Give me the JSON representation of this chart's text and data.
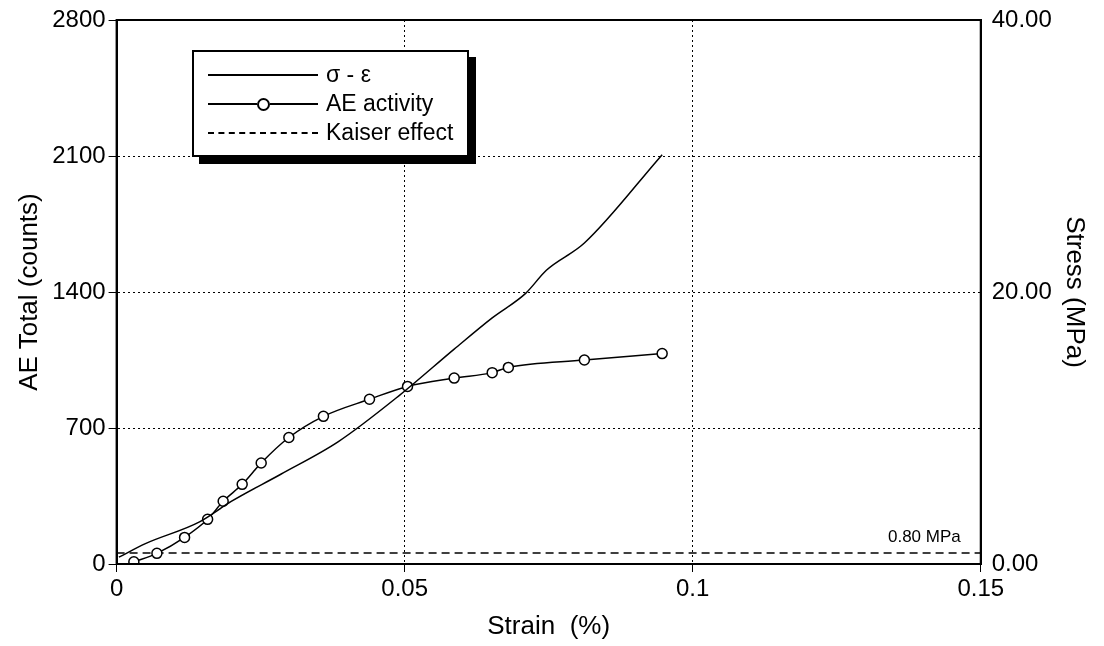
{
  "chart_data": {
    "type": "line",
    "xlabel": "Strain  (%)",
    "ylabel": "AE Total (counts)",
    "y2label": "Stress (MPa)",
    "xlim": [
      0,
      0.15
    ],
    "xticks": [
      0,
      0.05,
      0.1,
      0.15
    ],
    "ylim": [
      0,
      2800
    ],
    "yticks": [
      0,
      700,
      1400,
      2100,
      2800
    ],
    "y2lim": [
      0,
      40
    ],
    "y2ticks": [
      {
        "value": 0,
        "label": "0.00"
      },
      {
        "value": 20,
        "label": "20.00"
      },
      {
        "value": 40,
        "label": "40.00"
      }
    ],
    "grid": true,
    "legend": "top left",
    "annotations": [
      "0.80 MPa"
    ],
    "series": [
      {
        "name": "σ - ε",
        "color": "#000000",
        "axis": "y2",
        "marker": "none",
        "line_style": "solid",
        "x": [
          0.0004,
          0.005,
          0.0144,
          0.0199,
          0.0285,
          0.0385,
          0.0491,
          0.0586,
          0.0652,
          0.071,
          0.0746,
          0.0812,
          0.0947
        ],
        "values": [
          0.5,
          1.5,
          3.1,
          4.6,
          6.6,
          9.0,
          12.4,
          15.8,
          18.1,
          19.9,
          21.6,
          23.6,
          30.1
        ]
      },
      {
        "name": "AE activity",
        "color": "#000000",
        "axis": "y",
        "marker": "circle",
        "line_style": "solid",
        "x": [
          0.003,
          0.007,
          0.0118,
          0.0158,
          0.0185,
          0.0218,
          0.0251,
          0.0299,
          0.0359,
          0.0439,
          0.0505,
          0.0586,
          0.0652,
          0.068,
          0.0812,
          0.0947
        ],
        "values": [
          11,
          55,
          137,
          230,
          323,
          410,
          520,
          651,
          760,
          848,
          914,
          957,
          985,
          1012,
          1050,
          1083
        ]
      },
      {
        "name": "Kaiser effect",
        "color": "#000000",
        "axis": "y2",
        "marker": "none",
        "line_style": "dashed",
        "x": [
          0,
          0.15
        ],
        "values": [
          0.8,
          0.8
        ]
      }
    ]
  }
}
